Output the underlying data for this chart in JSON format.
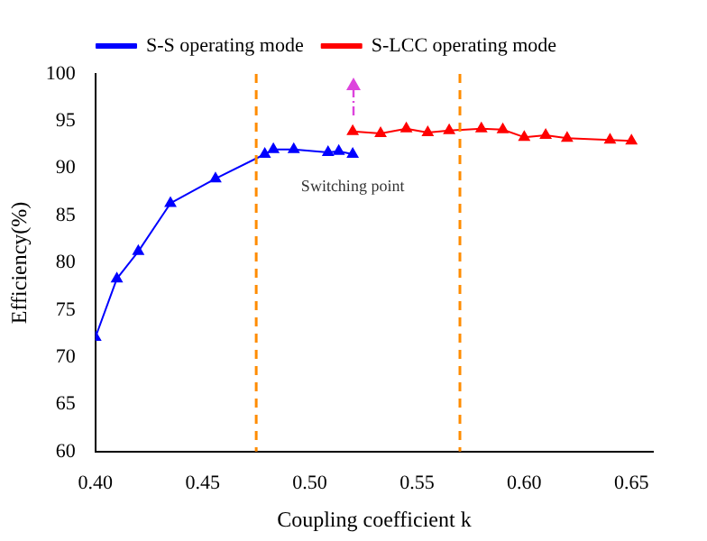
{
  "chart_data": {
    "type": "line",
    "xlabel": "Coupling coefficient k",
    "ylabel": "Efficiency(%)",
    "xlim": [
      0.4,
      0.66
    ],
    "xticks": [
      {
        "value": 0.4,
        "label": "0.40"
      },
      {
        "value": 0.45,
        "label": "0.45"
      },
      {
        "value": 0.5,
        "label": "0.50"
      },
      {
        "value": 0.55,
        "label": "0.55"
      },
      {
        "value": 0.6,
        "label": "0.60"
      },
      {
        "value": 0.65,
        "label": "0.65"
      }
    ],
    "ylim": [
      60,
      100
    ],
    "yticks": [
      60,
      65,
      70,
      75,
      80,
      85,
      90,
      95,
      100
    ],
    "series": [
      {
        "name": "S-S operating mode",
        "color": "#0000ff",
        "marker": "triangle",
        "x": [
          0.4,
          0.41,
          0.42,
          0.435,
          0.456,
          0.479,
          0.483,
          0.4925,
          0.5085,
          0.5135,
          0.52
        ],
        "values": [
          72.1,
          78.3,
          81.2,
          86.3,
          88.9,
          91.5,
          92.0,
          92.0,
          91.7,
          91.8,
          91.5
        ]
      },
      {
        "name": "S-LCC operating mode",
        "color": "#ff0000",
        "marker": "triangle",
        "x": [
          0.52,
          0.533,
          0.545,
          0.555,
          0.565,
          0.58,
          0.59,
          0.6,
          0.61,
          0.62,
          0.64,
          0.65
        ],
        "values": [
          93.9,
          93.7,
          94.2,
          93.8,
          94.0,
          94.2,
          94.1,
          93.3,
          93.5,
          93.2,
          93.0,
          92.9
        ]
      }
    ],
    "ref_lines": [
      {
        "axis": "x",
        "value": 0.475,
        "color": "#ff8c00",
        "line_style": "dashed"
      },
      {
        "axis": "x",
        "value": 0.57,
        "color": "#ff8c00",
        "line_style": "dashed"
      }
    ],
    "annotations": [
      {
        "text": "Switching point",
        "x": 0.52,
        "y": 91.5
      }
    ],
    "legend": "top",
    "grid": false
  }
}
